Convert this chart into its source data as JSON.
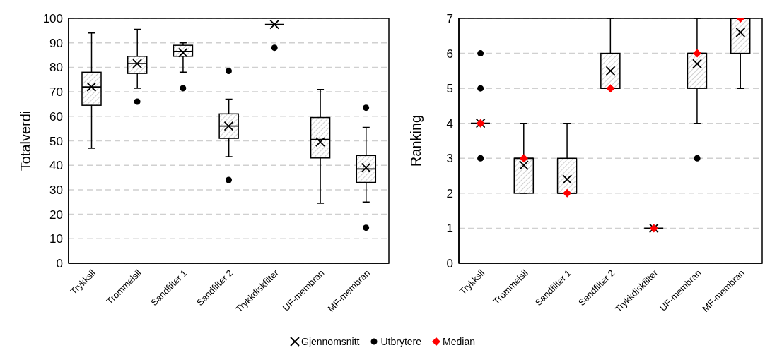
{
  "chart_data": [
    {
      "type": "box",
      "ylabel": "Totalverdi",
      "categories": [
        "Trykksil",
        "Trommelsil",
        "Sandfilter 1",
        "Sandfilter 2",
        "Trykkdiskfilter",
        "UF-membran",
        "MF-membran"
      ],
      "ylim": [
        0,
        100
      ],
      "yticks": [
        0,
        10,
        20,
        30,
        40,
        50,
        60,
        70,
        80,
        90,
        100
      ],
      "grid": "y",
      "legend": false,
      "series": [
        {
          "type": "box",
          "color": "#000000",
          "boxes": [
            {
              "low": 47,
              "q1": 64.5,
              "median": 72,
              "q3": 78,
              "high": 94
            },
            {
              "low": 71.5,
              "q1": 77.5,
              "median": 81.5,
              "q3": 84.5,
              "high": 95.5
            },
            {
              "low": 78,
              "q1": 84.5,
              "median": 86.5,
              "q3": 89,
              "high": 90
            },
            {
              "low": 43.5,
              "q1": 51,
              "median": 56,
              "q3": 61,
              "high": 67
            },
            {
              "low": 97.5,
              "q1": 97.5,
              "median": 97.5,
              "q3": 97.5,
              "high": 97.5
            },
            {
              "low": 24.5,
              "q1": 43,
              "median": 50.5,
              "q3": 59.5,
              "high": 71
            },
            {
              "low": 25,
              "q1": 33,
              "median": 38.5,
              "q3": 44,
              "high": 55.5
            }
          ]
        },
        {
          "type": "scatter",
          "marker": "cross",
          "color": "#000000",
          "values": [
            72,
            81.5,
            86,
            56,
            97.5,
            49.5,
            39
          ]
        },
        {
          "type": "scatter",
          "marker": "circle",
          "color": "#000000",
          "x": [
            "Trommelsil",
            "Sandfilter 1",
            "Sandfilter 2",
            "Sandfilter 2",
            "Trykkdiskfilter",
            "MF-membran",
            "MF-membran"
          ],
          "values": [
            66,
            71.5,
            78.5,
            34,
            88,
            63.5,
            14.5
          ]
        }
      ]
    },
    {
      "type": "box",
      "ylabel": "Ranking",
      "categories": [
        "Trykksil",
        "Trommelsil",
        "Sandfilter 1",
        "Sandfilter 2",
        "Trykkdiskfilter",
        "UF-membran",
        "MF-membran"
      ],
      "ylim": [
        0,
        7
      ],
      "yticks": [
        0,
        1,
        2,
        3,
        4,
        5,
        6,
        7
      ],
      "grid": "y",
      "legend": "bottom",
      "series": [
        {
          "type": "box",
          "color": "#000000",
          "boxes": [
            {
              "low": 4,
              "q1": 4,
              "median": 4,
              "q3": 4,
              "high": 4
            },
            {
              "low": 2,
              "q1": 2,
              "median": 3,
              "q3": 3,
              "high": 4
            },
            {
              "low": 2,
              "q1": 2,
              "median": 2,
              "q3": 3,
              "high": 4
            },
            {
              "low": 5,
              "q1": 5,
              "median": 5,
              "q3": 6,
              "high": 7
            },
            {
              "low": 1,
              "q1": 1,
              "median": 1,
              "q3": 1,
              "high": 1
            },
            {
              "low": 4,
              "q1": 5,
              "median": 6,
              "q3": 6,
              "high": 7
            },
            {
              "low": 5,
              "q1": 6,
              "median": 7,
              "q3": 7,
              "high": 7
            }
          ]
        },
        {
          "name": "Gjennomsnitt",
          "type": "scatter",
          "marker": "cross",
          "color": "#000000",
          "values": [
            4,
            2.8,
            2.4,
            5.5,
            1,
            5.7,
            6.6
          ]
        },
        {
          "name": "Utbrytere",
          "type": "scatter",
          "marker": "circle",
          "color": "#000000",
          "x": [
            "Trykksil",
            "Trykksil",
            "Trykksil",
            "UF-membran"
          ],
          "values": [
            6,
            5,
            3,
            3
          ]
        },
        {
          "name": "Median",
          "type": "scatter",
          "marker": "diamond",
          "color": "#ff0000",
          "values": [
            4,
            3,
            2,
            5,
            1,
            6,
            7
          ]
        }
      ]
    }
  ]
}
